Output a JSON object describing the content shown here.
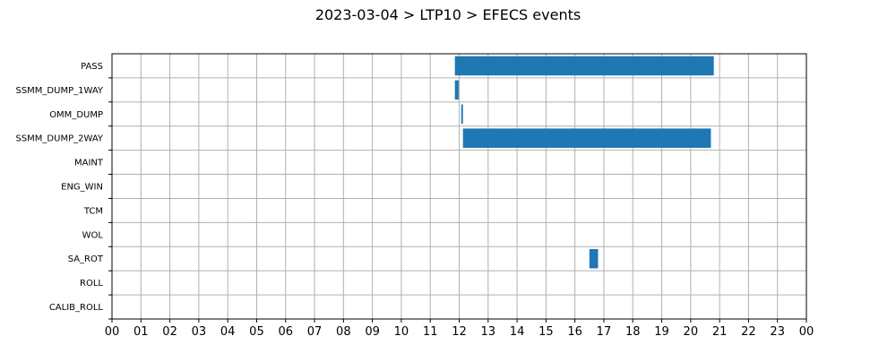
{
  "chart_data": {
    "type": "bar",
    "orientation": "horizontal",
    "title": "2023-03-04 > LTP10 > EFECS events",
    "xlabel": "",
    "ylabel": "",
    "xlim": [
      0,
      24
    ],
    "x_tick_labels": [
      "00",
      "01",
      "02",
      "03",
      "04",
      "05",
      "06",
      "07",
      "08",
      "09",
      "10",
      "11",
      "12",
      "13",
      "14",
      "15",
      "16",
      "17",
      "18",
      "19",
      "20",
      "21",
      "22",
      "23",
      "00"
    ],
    "categories": [
      "PASS",
      "SSMM_DUMP_1WAY",
      "OMM_DUMP",
      "SSMM_DUMP_2WAY",
      "MAINT",
      "ENG_WIN",
      "TCM",
      "WOL",
      "SA_ROT",
      "ROLL",
      "CALIB_ROLL"
    ],
    "grid": true,
    "bar_color": "#1f77b4",
    "events": [
      {
        "category": "PASS",
        "start": 11.85,
        "end": 20.8
      },
      {
        "category": "SSMM_DUMP_1WAY",
        "start": 11.85,
        "end": 11.98
      },
      {
        "category": "OMM_DUMP",
        "start": 12.07,
        "end": 12.13
      },
      {
        "category": "SSMM_DUMP_2WAY",
        "start": 12.13,
        "end": 20.7
      },
      {
        "category": "SA_ROT",
        "start": 16.5,
        "end": 16.8
      }
    ]
  }
}
